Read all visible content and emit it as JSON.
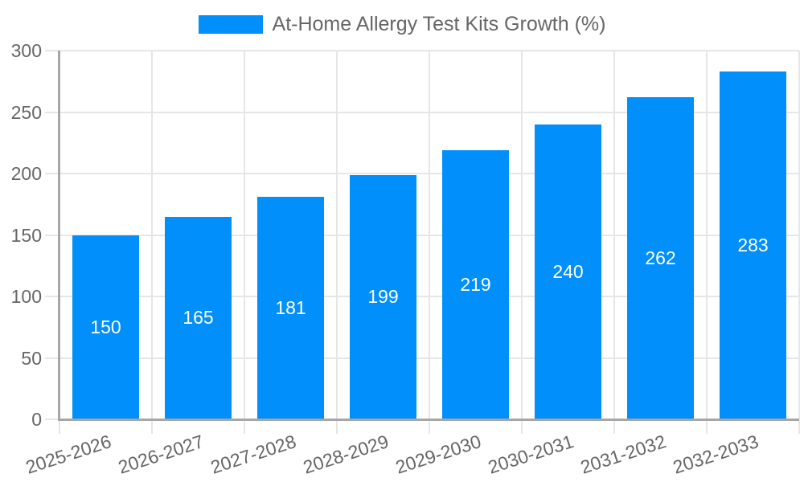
{
  "chart_data": {
    "type": "bar",
    "title": "At-Home Allergy Test Kits Growth (%)",
    "categories": [
      "2025-2026",
      "2026-2027",
      "2027-2028",
      "2028-2029",
      "2029-2030",
      "2030-2031",
      "2031-2032",
      "2032-2033"
    ],
    "values": [
      150,
      165,
      181,
      199,
      219,
      240,
      262,
      283
    ],
    "xlabel": "",
    "ylabel": "",
    "ylim": [
      0,
      300
    ],
    "yticks": [
      0,
      50,
      100,
      150,
      200,
      250,
      300
    ],
    "grid": true,
    "legend_position": "top",
    "colors": {
      "bar": "#008ffb",
      "value_label": "#ffffff",
      "axis_text": "#666666",
      "grid_line": "#e6e6e6",
      "axis_line": "#a6a6a6"
    }
  }
}
